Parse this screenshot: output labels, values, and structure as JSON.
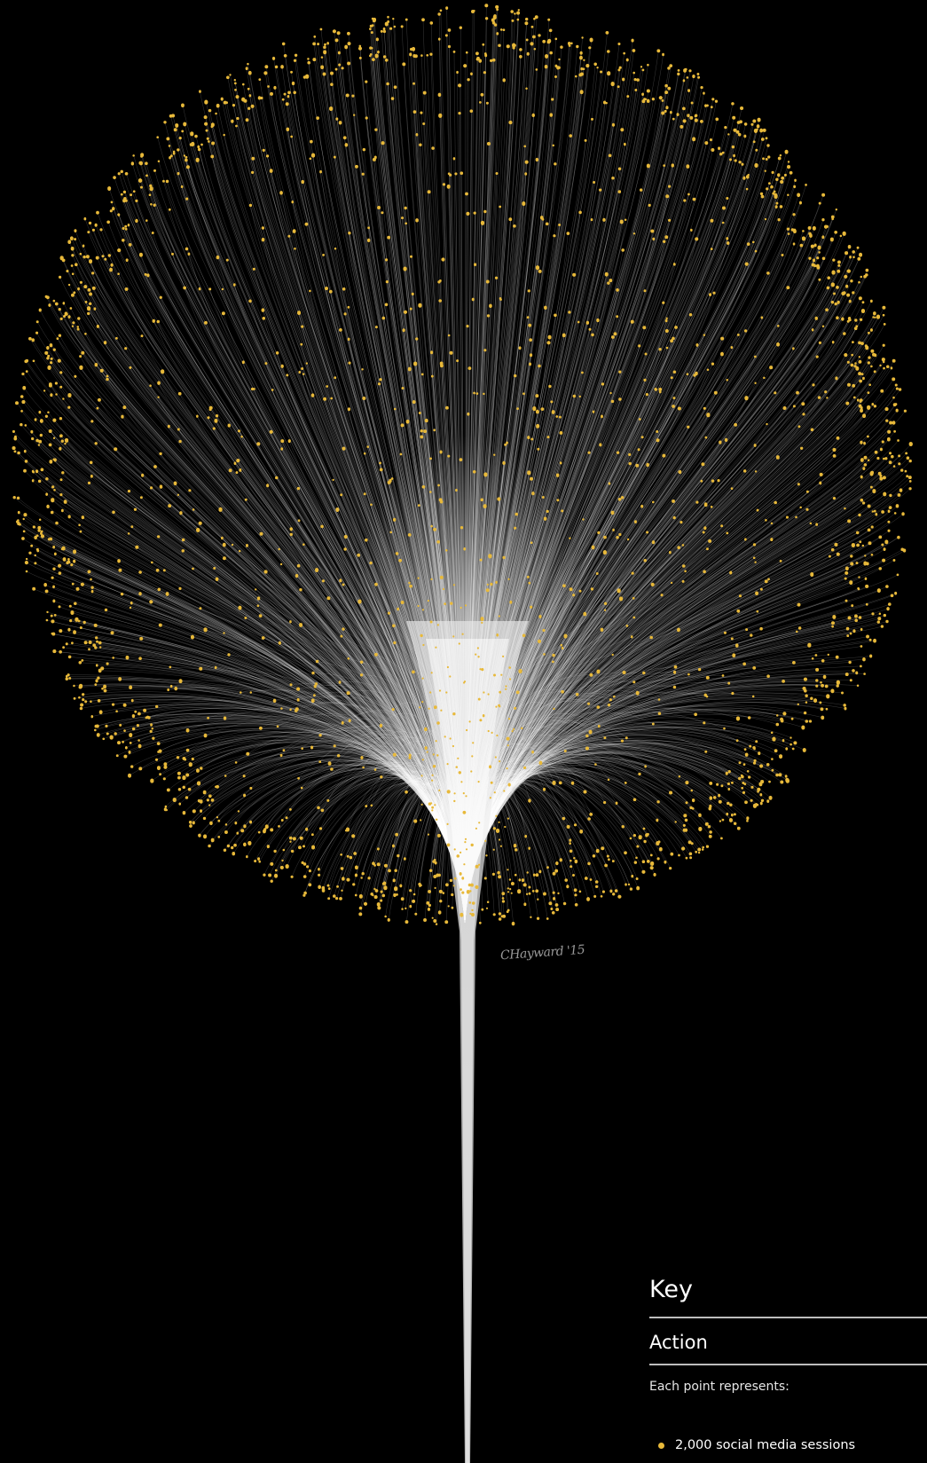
{
  "signature": "CHayward '15",
  "key": {
    "title": "Key",
    "section": "Action",
    "description": "Each point represents:",
    "legend_item": "2,000 social media sessions"
  },
  "colors": {
    "background": "#000000",
    "point": "#e8b93a",
    "line": "#ffffff"
  }
}
